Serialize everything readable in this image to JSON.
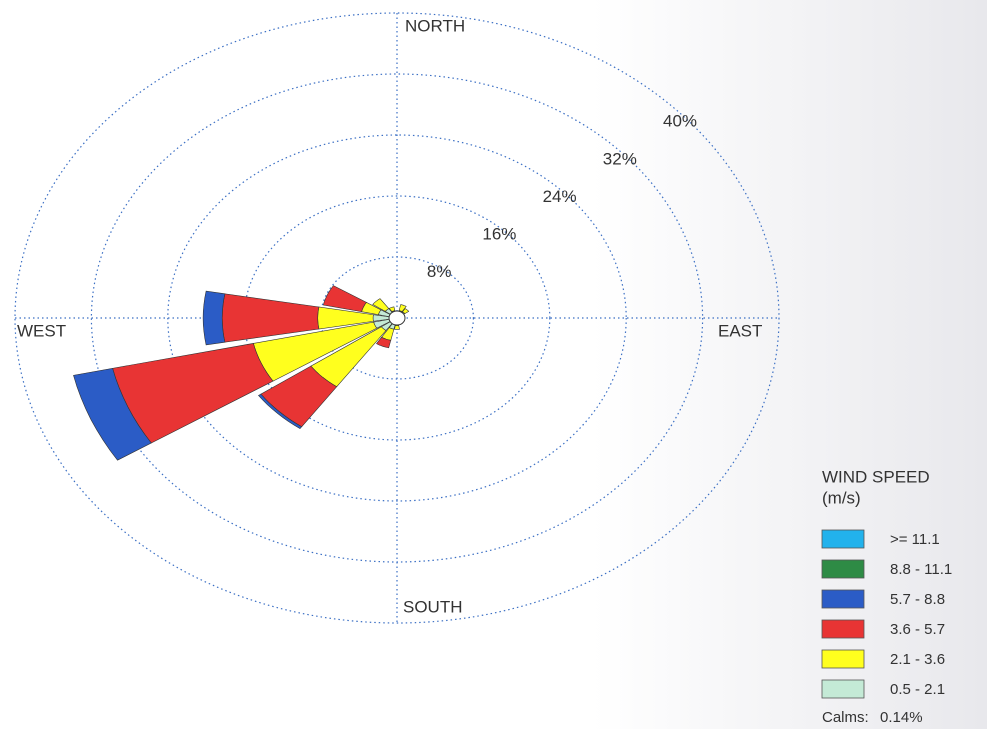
{
  "chart_data": {
    "type": "wind_rose",
    "axis_labels": {
      "north": "NORTH",
      "east": "EAST",
      "south": "SOUTH",
      "west": "WEST"
    },
    "angles": [
      0,
      22.5,
      45,
      67.5,
      90,
      112.5,
      135,
      157.5,
      180,
      202.5,
      225,
      247.5,
      270,
      292.5,
      315,
      337.5
    ],
    "rlim": [
      0,
      40
    ],
    "rticks": [
      {
        "value": 8,
        "label": "8%"
      },
      {
        "value": 16,
        "label": "16%"
      },
      {
        "value": 24,
        "label": "24%"
      },
      {
        "value": 32,
        "label": "32%"
      },
      {
        "value": 40,
        "label": "40%"
      }
    ],
    "grid": true,
    "legend_title": "WIND SPEED",
    "legend_units": "(m/s)",
    "legend_position": "lower right",
    "series": [
      {
        "name": ">= 11.1",
        "color": "#22b2ec",
        "values": [
          0,
          0,
          0,
          0,
          0,
          0,
          0,
          0,
          0,
          0,
          0,
          0,
          0,
          0,
          0,
          0
        ]
      },
      {
        "name": "8.8 - 11.1",
        "color": "#2e8b45",
        "values": [
          0,
          0,
          0,
          0,
          0,
          0,
          0,
          0,
          0,
          0,
          0,
          0,
          0,
          0,
          0,
          0
        ]
      },
      {
        "name": "5.7 - 8.8",
        "color": "#2b5cc6",
        "values": [
          0,
          0,
          0,
          0,
          0,
          0,
          0,
          0,
          0,
          0,
          0.3,
          4.2,
          2,
          0,
          0,
          0
        ]
      },
      {
        "name": "3.6 - 5.7",
        "color": "#e83434",
        "values": [
          0,
          0,
          0,
          0,
          0,
          0,
          0,
          0,
          0,
          1,
          6.4,
          15.1,
          10,
          4.1,
          0,
          0
        ]
      },
      {
        "name": "2.1 - 3.6",
        "color": "#ffff1e",
        "values": [
          0,
          0.8,
          0.5,
          0,
          0,
          0,
          0,
          0,
          0.5,
          1.5,
          9,
          12.9,
          5.8,
          1.8,
          1.6,
          0.5
        ]
      },
      {
        "name": "0.5 - 2.1",
        "color": "#c4ead6",
        "values": [
          0.8,
          1,
          1,
          0.8,
          0.6,
          0.5,
          0.6,
          0.8,
          1,
          1.5,
          2,
          2.5,
          2.5,
          2,
          1.5,
          1
        ]
      }
    ],
    "calms_label": "Calms:",
    "calms": 0.14,
    "calms_value_label": "0.14%"
  }
}
